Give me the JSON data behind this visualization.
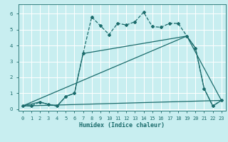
{
  "xlabel": "Humidex (Indice chaleur)",
  "bg_color": "#c8eef0",
  "line_color": "#1a6b6b",
  "grid_color": "#ffffff",
  "xlim": [
    -0.5,
    23.5
  ],
  "ylim": [
    -0.1,
    6.6
  ],
  "line1_x": [
    0,
    1,
    2,
    3,
    4,
    5,
    6,
    7,
    8,
    9,
    10,
    11,
    12,
    13,
    14,
    15,
    16,
    17,
    18,
    19,
    20,
    21,
    22,
    23
  ],
  "line1_y": [
    0.2,
    0.2,
    0.45,
    0.3,
    0.2,
    0.8,
    1.0,
    3.5,
    5.8,
    5.25,
    4.7,
    5.4,
    5.3,
    5.5,
    6.1,
    5.2,
    5.15,
    5.4,
    5.4,
    4.6,
    3.85,
    1.3,
    0.2,
    0.55
  ],
  "line2_x": [
    0,
    2,
    3,
    4,
    5,
    6,
    7,
    19,
    20,
    21,
    22,
    23
  ],
  "line2_y": [
    0.2,
    0.45,
    0.3,
    0.2,
    0.8,
    1.0,
    3.5,
    4.6,
    3.85,
    1.3,
    0.2,
    0.55
  ],
  "line3_x": [
    0,
    19,
    23
  ],
  "line3_y": [
    0.2,
    4.6,
    0.55
  ],
  "line4_x": [
    0,
    23
  ],
  "line4_y": [
    0.2,
    0.55
  ],
  "yticks": [
    0,
    1,
    2,
    3,
    4,
    5,
    6
  ],
  "xticks": [
    0,
    1,
    2,
    3,
    4,
    5,
    6,
    7,
    8,
    9,
    10,
    11,
    12,
    13,
    14,
    15,
    16,
    17,
    18,
    19,
    20,
    21,
    22,
    23
  ]
}
